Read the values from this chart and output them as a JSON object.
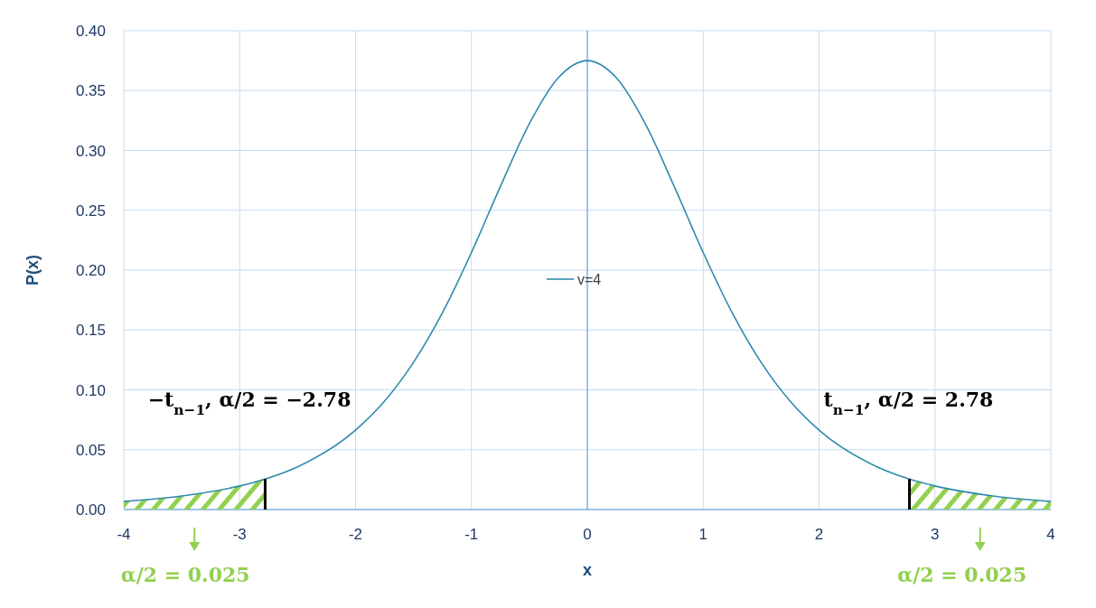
{
  "chart_data": {
    "type": "line",
    "xlabel": "x",
    "ylabel": "P(x)",
    "xlim": [
      -4,
      4
    ],
    "xticks": [
      -4,
      -3,
      -2,
      -1,
      0,
      1,
      2,
      3,
      4
    ],
    "ylim": [
      0,
      0.4
    ],
    "yticks": [
      {
        "value": 0,
        "label": "0.00"
      },
      {
        "value": 0.05,
        "label": "0.05"
      },
      {
        "value": 0.1,
        "label": "0.10"
      },
      {
        "value": 0.15,
        "label": "0.15"
      },
      {
        "value": 0.2,
        "label": "0.20"
      },
      {
        "value": 0.25,
        "label": "0.25"
      },
      {
        "value": 0.3,
        "label": "0.30"
      },
      {
        "value": 0.35,
        "label": "0.35"
      },
      {
        "value": 0.4,
        "label": "0.40"
      }
    ],
    "grid": true,
    "legend": "center",
    "marker": "none",
    "line_style": "solid",
    "x": [
      -4,
      -3.5,
      -3,
      -2.78,
      -2.5,
      -2,
      -1.75,
      -1.5,
      -1.25,
      -1,
      -0.75,
      -0.5,
      -0.25,
      0,
      0.25,
      0.5,
      0.75,
      1,
      1.25,
      1.5,
      1.75,
      2,
      2.5,
      2.78,
      3,
      3.5,
      4
    ],
    "series": [
      {
        "type": "area",
        "color": "#92d050",
        "x": [
          -4,
          -3.5,
          -3,
          -2.78
        ],
        "values": [
          0.0067,
          0.0113,
          0.0197,
          0.0255
        ]
      },
      {
        "type": "area",
        "color": "#92d050",
        "x": [
          2.78,
          3,
          3.5,
          4
        ],
        "values": [
          0.0255,
          0.0197,
          0.0113,
          0.0067
        ]
      },
      {
        "name": "v=4",
        "color": "#2e8bb0",
        "values": [
          0.0067,
          0.0113,
          0.0197,
          0.0255,
          0.0357,
          0.0663,
          0.0905,
          0.1229,
          0.1644,
          0.2147,
          0.2699,
          0.3223,
          0.3607,
          0.375,
          0.3607,
          0.3223,
          0.2699,
          0.2147,
          0.1644,
          0.1229,
          0.0905,
          0.0663,
          0.0357,
          0.0255,
          0.0197,
          0.0113,
          0.0067
        ]
      },
      {
        "color": "#000000",
        "x": [
          -2.78,
          -2.78
        ],
        "values": [
          0,
          0.0255
        ]
      },
      {
        "color": "#000000",
        "x": [
          2.78,
          2.78
        ],
        "values": [
          0,
          0.0255
        ]
      }
    ],
    "ref_lines": [
      {
        "axis": "x",
        "value": 0,
        "color": "#5b9bd5"
      }
    ],
    "annotations": [
      "−t$_{n−1}$, α/2 = −2.78",
      "t$_{n−1}$, α/2 = 2.78",
      "α/2 = 0.025",
      "α/2 = 0.025"
    ]
  }
}
